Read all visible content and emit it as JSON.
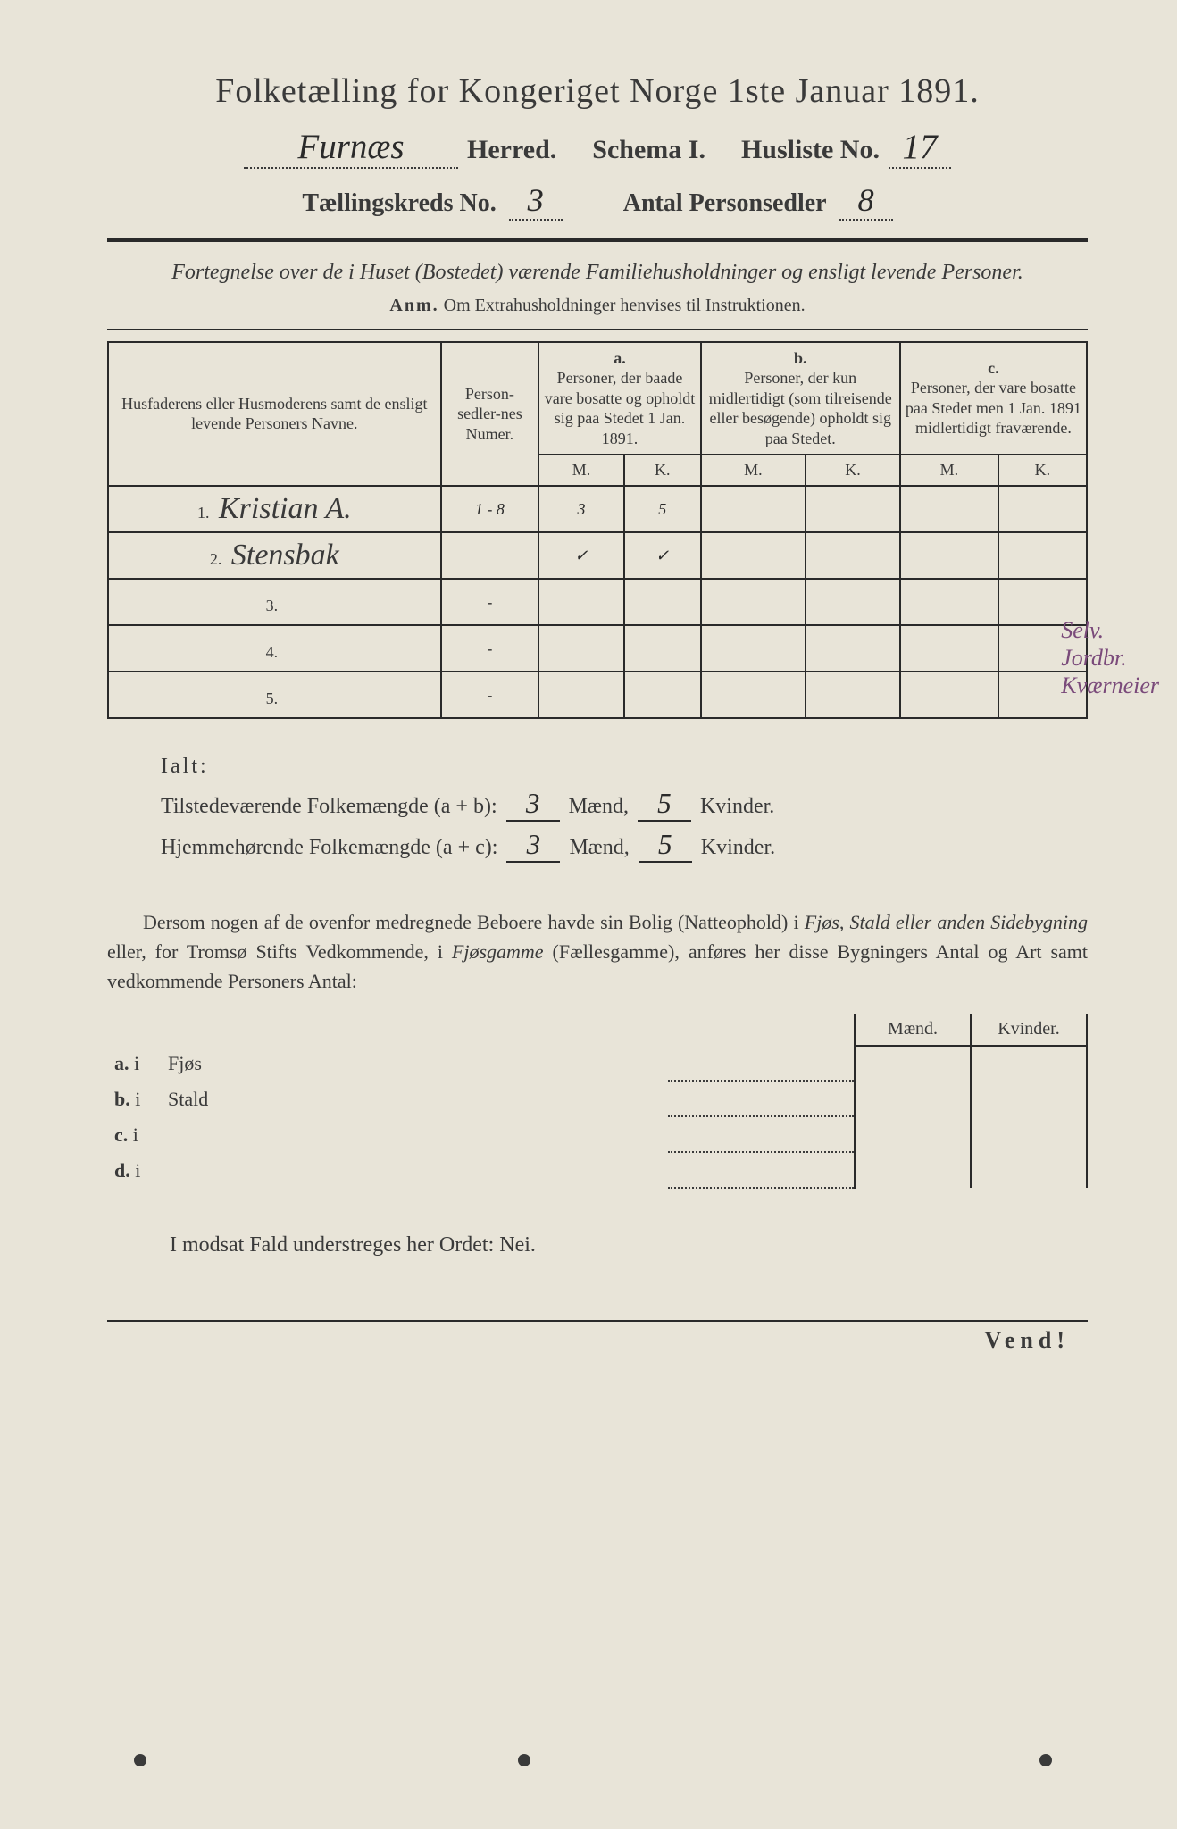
{
  "colors": {
    "paper": "#e8e4d8",
    "ink": "#3a3a3a",
    "rule": "#2a2a2a",
    "margin_note": "#7a4a7a"
  },
  "typography": {
    "title_fontsize": 38,
    "line2_fontsize": 30,
    "line3_fontsize": 28,
    "body_fontsize": 22,
    "table_body_fontsize": 18,
    "handwriting_font": "Brush Script MT"
  },
  "header": {
    "title": "Folketælling for Kongeriget Norge 1ste Januar 1891.",
    "herred_value": "Furnæs",
    "herred_label": "Herred.",
    "schema_label": "Schema I.",
    "husliste_label": "Husliste No.",
    "husliste_value": "17",
    "kreds_label": "Tællingskreds No.",
    "kreds_value": "3",
    "antal_label": "Antal Personsedler",
    "antal_value": "8"
  },
  "subtitle": {
    "line": "Fortegnelse over de i Huset (Bostedet) værende Familiehusholdninger og ensligt levende Personer.",
    "anm_label": "Anm.",
    "anm_text": "Om Extrahusholdninger henvises til Instruktionen."
  },
  "table": {
    "headers": {
      "col_name": "Husfaderens eller Husmoderens samt de ensligt levende Personers Navne.",
      "col_num": "Person-sedler-nes Numer.",
      "col_a_label": "a.",
      "col_a": "Personer, der baade vare bosatte og opholdt sig paa Stedet 1 Jan. 1891.",
      "col_b_label": "b.",
      "col_b": "Personer, der kun midlertidigt (som tilreisende eller besøgende) opholdt sig paa Stedet.",
      "col_c_label": "c.",
      "col_c": "Personer, der vare bosatte paa Stedet men 1 Jan. 1891 midlertidigt fraværende.",
      "m": "M.",
      "k": "K."
    },
    "rows": [
      {
        "idx": "1.",
        "name": "Kristian A.",
        "num": "1 - 8",
        "a_m": "3",
        "a_k": "5",
        "b_m": "",
        "b_k": "",
        "c_m": "",
        "c_k": ""
      },
      {
        "idx": "2.",
        "name": "Stensbak",
        "num": "",
        "a_m": "✓",
        "a_k": "✓",
        "b_m": "",
        "b_k": "",
        "c_m": "",
        "c_k": ""
      },
      {
        "idx": "3.",
        "name": "",
        "num": "-",
        "a_m": "",
        "a_k": "",
        "b_m": "",
        "b_k": "",
        "c_m": "",
        "c_k": ""
      },
      {
        "idx": "4.",
        "name": "",
        "num": "-",
        "a_m": "",
        "a_k": "",
        "b_m": "",
        "b_k": "",
        "c_m": "",
        "c_k": ""
      },
      {
        "idx": "5.",
        "name": "",
        "num": "-",
        "a_m": "",
        "a_k": "",
        "b_m": "",
        "b_k": "",
        "c_m": "",
        "c_k": ""
      }
    ],
    "margin_notes": [
      "Selv.",
      "Jordbr.",
      "Kværneier"
    ]
  },
  "totals": {
    "ialt_label": "Ialt:",
    "tilstede_label": "Tilstedeværende Folkemængde (a + b):",
    "hjemme_label": "Hjemmehørende Folkemængde (a + c):",
    "maend_label": "Mænd,",
    "kvinder_label": "Kvinder.",
    "tilstede_m": "3",
    "tilstede_k": "5",
    "hjemme_m": "3",
    "hjemme_k": "5"
  },
  "paragraph": {
    "text_1": "Dersom nogen af de ovenfor medregnede Beboere havde sin Bolig (Natteophold) i ",
    "it_1": "Fjøs, Stald eller anden Sidebygning",
    "text_2": " eller, for Tromsø Stifts Vedkommende, i ",
    "it_2": "Fjøsgamme",
    "text_3": " (Fællesgamme), anføres her disse Bygningers Antal og Art samt vedkommende Personers Antal:"
  },
  "bygg": {
    "maend": "Mænd.",
    "kvinder": "Kvinder.",
    "rows": [
      {
        "lbl": "a.",
        "i": "i",
        "name": "Fjøs"
      },
      {
        "lbl": "b.",
        "i": "i",
        "name": "Stald"
      },
      {
        "lbl": "c.",
        "i": "i",
        "name": ""
      },
      {
        "lbl": "d.",
        "i": "i",
        "name": ""
      }
    ]
  },
  "nei_line": "I modsat Fald understreges her Ordet: Nei.",
  "footer": {
    "vend": "Vend!"
  }
}
